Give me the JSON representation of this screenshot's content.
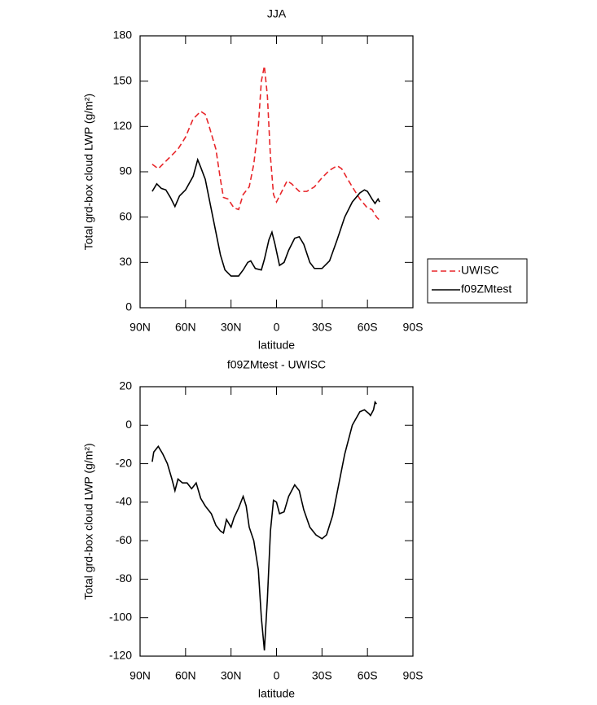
{
  "chart_data": [
    {
      "type": "line",
      "title": "JJA",
      "xlabel": "latitude",
      "ylabel": "Total grd-box cloud LWP (g/m²)",
      "xlim": [
        90,
        -90
      ],
      "xticks": [
        {
          "value": 90,
          "label": "90N"
        },
        {
          "value": 60,
          "label": "60N"
        },
        {
          "value": 30,
          "label": "30N"
        },
        0,
        {
          "value": -30,
          "label": "30S"
        },
        {
          "value": -60,
          "label": "60S"
        },
        {
          "value": -90,
          "label": "90S"
        }
      ],
      "ylim": [
        0,
        180
      ],
      "yticks": [
        0,
        30,
        60,
        90,
        120,
        150,
        180
      ],
      "legend": "outside right",
      "series": [
        {
          "name": "UWISC",
          "color": "#e8262a",
          "dash": true,
          "x": [
            82,
            78,
            75,
            70,
            65,
            60,
            55,
            50,
            47,
            45,
            40,
            37,
            35,
            32,
            28,
            25,
            22,
            18,
            15,
            12,
            10,
            8,
            6,
            4,
            2,
            0,
            -3,
            -7,
            -10,
            -15,
            -20,
            -25,
            -30,
            -35,
            -40,
            -43,
            -47,
            -50,
            -55,
            -60,
            -63,
            -66,
            -68
          ],
          "values": [
            95,
            92,
            95,
            100,
            105,
            113,
            125,
            130,
            128,
            122,
            105,
            85,
            73,
            72,
            66,
            65,
            75,
            80,
            95,
            120,
            150,
            160,
            140,
            100,
            75,
            70,
            76,
            84,
            82,
            77,
            77,
            80,
            86,
            91,
            94,
            92,
            85,
            80,
            72,
            66,
            65,
            60,
            58
          ]
        },
        {
          "name": "f09ZMtest",
          "color": "#000000",
          "dash": false,
          "x": [
            82,
            79,
            76,
            73,
            70,
            67,
            64,
            60,
            55,
            52,
            50,
            47,
            43,
            40,
            37,
            34,
            30,
            25,
            22,
            19,
            17,
            14,
            10,
            8,
            5,
            3,
            1,
            -2,
            -5,
            -8,
            -12,
            -15,
            -18,
            -22,
            -25,
            -30,
            -35,
            -40,
            -45,
            -50,
            -55,
            -58,
            -60,
            -63,
            -65,
            -67,
            -68
          ],
          "values": [
            77,
            82,
            79,
            78,
            73,
            67,
            74,
            78,
            87,
            98,
            93,
            85,
            65,
            50,
            35,
            25,
            21,
            21,
            25,
            30,
            31,
            26,
            25,
            32,
            45,
            50,
            42,
            28,
            30,
            38,
            46,
            47,
            42,
            30,
            26,
            26,
            31,
            45,
            60,
            70,
            76,
            78,
            77,
            72,
            69,
            72,
            70
          ]
        }
      ]
    },
    {
      "type": "line",
      "title": "f09ZMtest - UWISC",
      "xlabel": "latitude",
      "ylabel": "Total grd-box cloud LWP (g/m²)",
      "xlim": [
        90,
        -90
      ],
      "xticks": [
        {
          "value": 90,
          "label": "90N"
        },
        {
          "value": 60,
          "label": "60N"
        },
        {
          "value": 30,
          "label": "30N"
        },
        0,
        {
          "value": -30,
          "label": "30S"
        },
        {
          "value": -60,
          "label": "60S"
        },
        {
          "value": -90,
          "label": "90S"
        }
      ],
      "ylim": [
        -120,
        20
      ],
      "yticks": [
        -120,
        -100,
        -80,
        -60,
        -40,
        -20,
        0,
        20
      ],
      "color": "#000000",
      "x": [
        82,
        81,
        78,
        75,
        72,
        69,
        67,
        65,
        62,
        59,
        56,
        53,
        50,
        47,
        43,
        40,
        37,
        35,
        33,
        30,
        28,
        25,
        22,
        20,
        18,
        15,
        12,
        10,
        8,
        6,
        4,
        2,
        0,
        -2,
        -5,
        -8,
        -12,
        -15,
        -18,
        -22,
        -26,
        -30,
        -33,
        -37,
        -40,
        -45,
        -50,
        -55,
        -58,
        -61,
        -62,
        -64,
        -65,
        -66
      ],
      "values": [
        -19,
        -14,
        -11,
        -15,
        -20,
        -28,
        -34,
        -28,
        -30,
        -30,
        -33,
        -30,
        -38,
        -42,
        -46,
        -52,
        -55,
        -56,
        -49,
        -53,
        -48,
        -43,
        -37,
        -42,
        -53,
        -60,
        -75,
        -100,
        -117,
        -90,
        -55,
        -39,
        -40,
        -46,
        -45,
        -37,
        -31,
        -34,
        -44,
        -53,
        -57,
        -59,
        -57,
        -47,
        -35,
        -15,
        0,
        7,
        8,
        6,
        5,
        8,
        12,
        11
      ]
    }
  ]
}
